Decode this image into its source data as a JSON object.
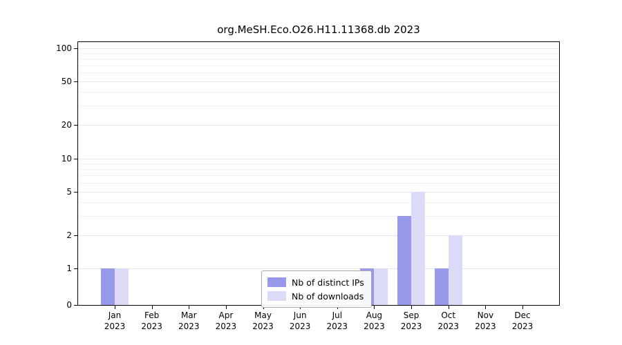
{
  "chart_data": {
    "type": "bar",
    "title": "org.MeSH.Eco.O26.H11.11368.db 2023",
    "categories": [
      "Jan",
      "Feb",
      "Mar",
      "Apr",
      "May",
      "Jun",
      "Jul",
      "Aug",
      "Sep",
      "Oct",
      "Nov",
      "Dec"
    ],
    "year_label": "2023",
    "series": [
      {
        "name": "Nb of distinct IPs",
        "color": "#9999ec",
        "values": [
          1,
          0,
          0,
          0,
          0,
          0,
          0,
          1,
          3,
          1,
          0,
          0
        ]
      },
      {
        "name": "Nb of downloads",
        "color": "#dbdbf7",
        "values": [
          1,
          0,
          0,
          0,
          0,
          0,
          0,
          1,
          5,
          2,
          0,
          0
        ]
      }
    ],
    "yscale": "log (0 shown at baseline)",
    "yticks": [
      0,
      1,
      2,
      5,
      10,
      20,
      50,
      100
    ],
    "minor_yticks": [
      3,
      4,
      6,
      7,
      8,
      9,
      30,
      40,
      60,
      70,
      80,
      90
    ],
    "ylim": [
      0,
      100
    ],
    "grid": "horizontal",
    "legend_position": "bottom-center"
  }
}
